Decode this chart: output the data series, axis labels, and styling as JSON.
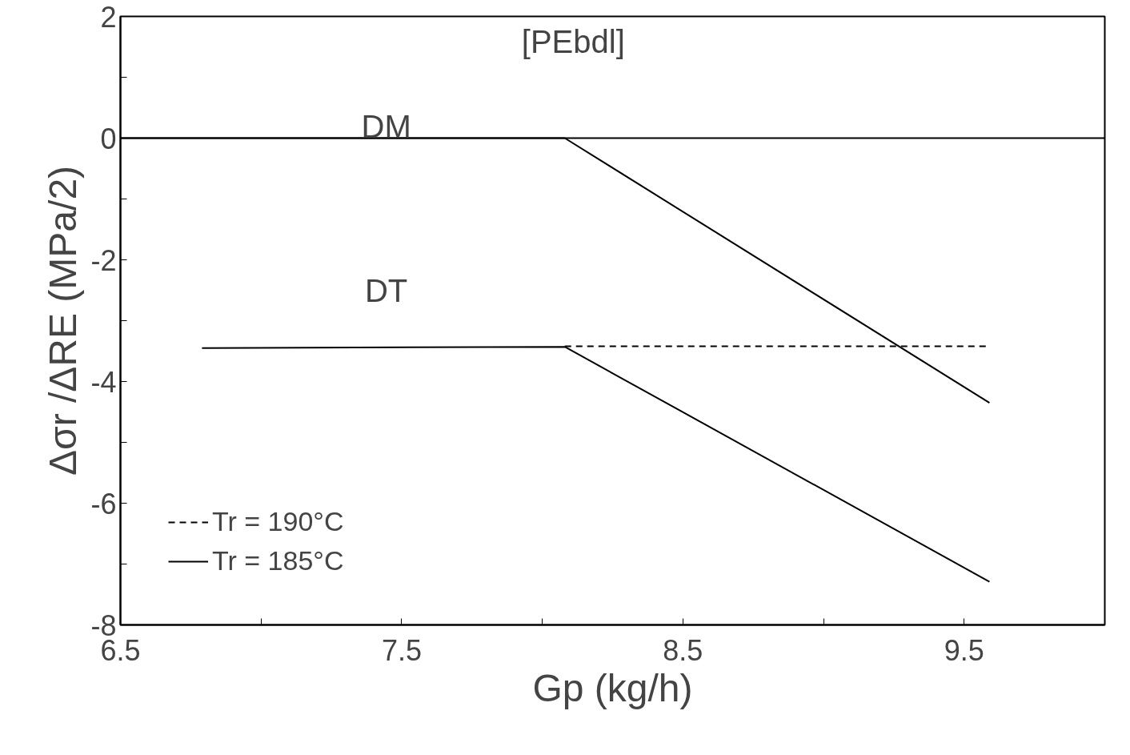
{
  "chart_data": {
    "type": "line",
    "xlabel": "Gp (kg/h)",
    "ylabel": "Δσr /ΔRE (MPa/2)",
    "xlim": [
      6.5,
      10.0
    ],
    "ylim": [
      -8,
      2
    ],
    "xticks": [
      6.5,
      {
        "value": 7.0,
        "label": null
      },
      7.5,
      {
        "value": 8.0,
        "label": null
      },
      8.5,
      {
        "value": 9.0,
        "label": null
      },
      9.5
    ],
    "yticks": [
      -8,
      {
        "value": -7,
        "label": null
      },
      -6,
      {
        "value": -5,
        "label": null
      },
      -4,
      {
        "value": -3,
        "label": null
      },
      -2,
      {
        "value": -1,
        "label": null
      },
      0,
      {
        "value": 1,
        "label": null
      },
      2
    ],
    "grid": false,
    "legend": "bottom left",
    "series": [
      {
        "name": "Tr = 190°C",
        "color": "#000000",
        "line_style": "dashed",
        "x": [
          8.08,
          9.59
        ],
        "values": [
          -3.42,
          -3.42
        ]
      },
      {
        "name": "Tr = 185°C",
        "color": "#000000",
        "line_style": "solid",
        "x": [
          6.5,
          8.08,
          9.59
        ],
        "values": [
          0,
          0,
          -4.35
        ]
      },
      {
        "color": "#000000",
        "line_style": "solid",
        "x": [
          6.79,
          8.08,
          9.59
        ],
        "values": [
          -3.45,
          -3.43,
          -7.29
        ]
      }
    ],
    "ref_lines": [
      {
        "axis": "y",
        "value": 0,
        "label": null,
        "color": "#000000",
        "line_style": "solid"
      }
    ],
    "annotations": [
      "[PEbdl]",
      "DM",
      "DT"
    ]
  }
}
